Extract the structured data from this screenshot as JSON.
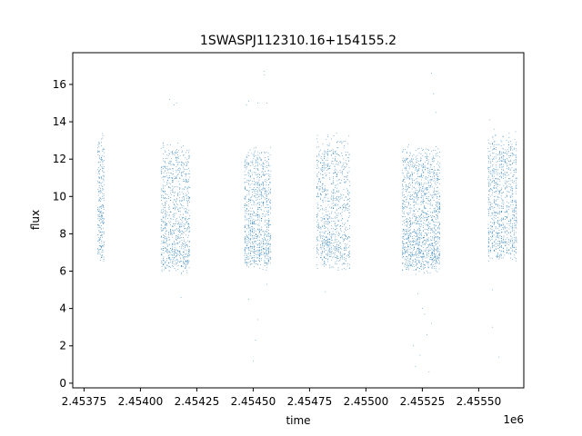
{
  "chart_data": {
    "type": "scatter",
    "title": "1SWASPJ112310.16+154155.2",
    "xlabel": "time",
    "ylabel": "flux",
    "x_offset_label": "1e6",
    "x_multiplier": 1000000,
    "xlim": [
      2.4537,
      2.4557
    ],
    "ylim": [
      -0.25,
      17.7
    ],
    "xticks": [
      2.45375,
      2.454,
      2.45425,
      2.4545,
      2.45475,
      2.455,
      2.45525,
      2.4555
    ],
    "xtick_labels": [
      "2.45375",
      "2.45400",
      "2.45425",
      "2.45450",
      "2.45475",
      "2.45500",
      "2.45525",
      "2.45550"
    ],
    "yticks": [
      0,
      2,
      4,
      6,
      8,
      10,
      12,
      14,
      16
    ],
    "ytick_labels": [
      "0",
      "2",
      "4",
      "6",
      "8",
      "10",
      "12",
      "14",
      "16"
    ],
    "grid": false,
    "marker_color": "#1f77b4",
    "observing_seasons": [
      {
        "x_range": [
          2.45381,
          2.45384
        ],
        "flux_range": [
          6.4,
          13.5
        ],
        "density": "low"
      },
      {
        "x_range": [
          2.45409,
          2.45422
        ],
        "flux_range": [
          5.8,
          13.0
        ],
        "density": "high"
      },
      {
        "x_range": [
          2.45446,
          2.45458
        ],
        "flux_range": [
          6.0,
          12.8
        ],
        "density": "high"
      },
      {
        "x_range": [
          2.45478,
          2.45493
        ],
        "flux_range": [
          6.0,
          13.5
        ],
        "density": "high"
      },
      {
        "x_range": [
          2.45516,
          2.45533
        ],
        "flux_range": [
          5.8,
          12.8
        ],
        "density": "very-high"
      },
      {
        "x_range": [
          2.45554,
          2.45567
        ],
        "flux_range": [
          6.5,
          13.5
        ],
        "density": "high"
      }
    ],
    "outliers": [
      {
        "x": 2.45413,
        "y": 15.2
      },
      {
        "x": 2.45415,
        "y": 14.9
      },
      {
        "x": 2.45416,
        "y": 15.0
      },
      {
        "x": 2.45447,
        "y": 14.9
      },
      {
        "x": 2.45448,
        "y": 15.1
      },
      {
        "x": 2.45452,
        "y": 15.0
      },
      {
        "x": 2.45455,
        "y": 16.7
      },
      {
        "x": 2.45455,
        "y": 16.5
      },
      {
        "x": 2.45456,
        "y": 15.0
      },
      {
        "x": 2.4545,
        "y": 1.2
      },
      {
        "x": 2.45451,
        "y": 2.3
      },
      {
        "x": 2.45452,
        "y": 3.4
      },
      {
        "x": 2.45448,
        "y": 4.5
      },
      {
        "x": 2.45456,
        "y": 5.3
      },
      {
        "x": 2.45418,
        "y": 4.6
      },
      {
        "x": 2.45482,
        "y": 4.9
      },
      {
        "x": 2.45483,
        "y": 13.3
      },
      {
        "x": 2.45521,
        "y": 2.0
      },
      {
        "x": 2.45522,
        "y": 0.9
      },
      {
        "x": 2.45524,
        "y": 1.5
      },
      {
        "x": 2.45526,
        "y": 3.7
      },
      {
        "x": 2.45528,
        "y": 0.6
      },
      {
        "x": 2.45527,
        "y": 2.6
      },
      {
        "x": 2.45525,
        "y": 4.0
      },
      {
        "x": 2.45529,
        "y": 3.2
      },
      {
        "x": 2.45523,
        "y": 4.8
      },
      {
        "x": 2.45529,
        "y": 16.6
      },
      {
        "x": 2.4553,
        "y": 15.5
      },
      {
        "x": 2.45531,
        "y": 14.5
      },
      {
        "x": 2.45556,
        "y": 3.0
      },
      {
        "x": 2.45556,
        "y": 5.0
      },
      {
        "x": 2.45559,
        "y": 1.4
      },
      {
        "x": 2.45557,
        "y": 13.6
      },
      {
        "x": 2.45555,
        "y": 14.1
      }
    ]
  }
}
